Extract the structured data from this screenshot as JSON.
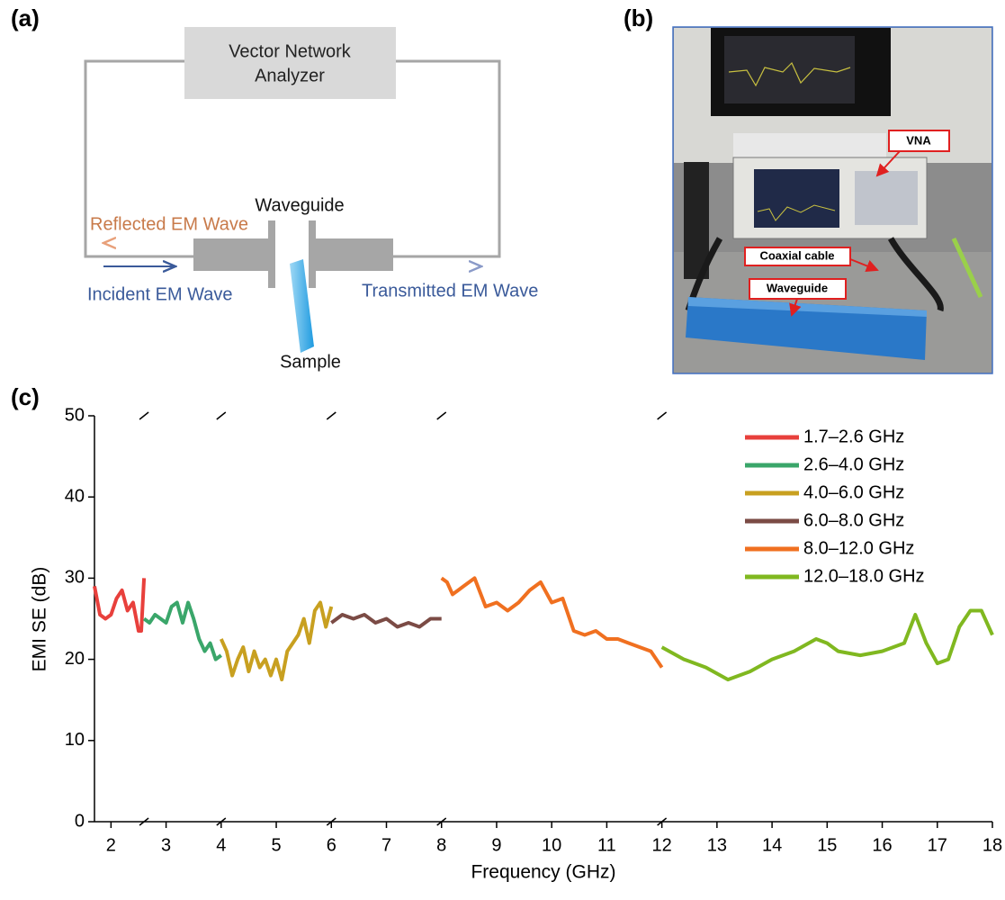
{
  "panels": {
    "a": {
      "label": "(a)",
      "analyzer": [
        "Vector Network",
        "Analyzer"
      ],
      "waveguide": "Waveguide",
      "reflected": "Reflected EM Wave",
      "incident": "Incident EM Wave",
      "transmitted": "Transmitted EM Wave",
      "sample": "Sample"
    },
    "b": {
      "label": "(b)",
      "callouts": [
        "VNA",
        "Coaxial cable",
        "Waveguide"
      ]
    },
    "c": {
      "label": "(c)"
    }
  },
  "chart_data": {
    "type": "line",
    "x_label": "Frequency (GHz)",
    "y_label": "EMI SE (dB)",
    "xlim": [
      1.7,
      18
    ],
    "xticks": [
      2,
      3,
      4,
      5,
      6,
      7,
      8,
      9,
      10,
      11,
      12,
      13,
      14,
      15,
      16,
      17,
      18
    ],
    "ylim": [
      0,
      50
    ],
    "yticks": [
      0,
      10,
      20,
      30,
      40,
      50
    ],
    "legend": "upper right",
    "grid": false,
    "series": [
      {
        "name": "1.7–2.6 GHz",
        "color": "#e8403c",
        "x": [
          1.7,
          1.8,
          1.9,
          2.0,
          2.1,
          2.2,
          2.3,
          2.4,
          2.5,
          2.55,
          2.6
        ],
        "values": [
          29,
          25.5,
          25,
          25.5,
          27.5,
          28.5,
          26,
          27,
          23.5,
          23.5,
          30
        ]
      },
      {
        "name": "2.6–4.0 GHz",
        "color": "#3aa66a",
        "x": [
          2.6,
          2.7,
          2.8,
          2.9,
          3.0,
          3.1,
          3.2,
          3.3,
          3.4,
          3.5,
          3.6,
          3.7,
          3.8,
          3.9,
          4.0
        ],
        "values": [
          25,
          24.5,
          25.5,
          25,
          24.5,
          26.5,
          27,
          24.5,
          27,
          25,
          22.5,
          21,
          22,
          20,
          20.5
        ]
      },
      {
        "name": "4.0–6.0 GHz",
        "color": "#c8a020",
        "x": [
          4.0,
          4.1,
          4.2,
          4.3,
          4.4,
          4.5,
          4.6,
          4.7,
          4.8,
          4.9,
          5.0,
          5.1,
          5.2,
          5.3,
          5.4,
          5.5,
          5.6,
          5.7,
          5.8,
          5.9,
          6.0
        ],
        "values": [
          22.5,
          21,
          18,
          20,
          21.5,
          18.5,
          21,
          19,
          20,
          18,
          20,
          17.5,
          21,
          22,
          23,
          25,
          22,
          26,
          27,
          24,
          26.5
        ]
      },
      {
        "name": "6.0–8.0 GHz",
        "color": "#7b4b45",
        "x": [
          6.0,
          6.2,
          6.4,
          6.6,
          6.8,
          7.0,
          7.2,
          7.4,
          7.6,
          7.8,
          8.0
        ],
        "values": [
          24.5,
          25.5,
          25,
          25.5,
          24.5,
          25,
          24,
          24.5,
          24,
          25,
          25
        ]
      },
      {
        "name": "8.0–12.0 GHz",
        "color": "#f07020",
        "x": [
          8.0,
          8.1,
          8.2,
          8.4,
          8.6,
          8.8,
          9.0,
          9.2,
          9.4,
          9.6,
          9.8,
          10.0,
          10.2,
          10.4,
          10.6,
          10.8,
          11.0,
          11.2,
          11.4,
          11.6,
          11.8,
          12.0
        ],
        "values": [
          30,
          29.5,
          28,
          29,
          30,
          26.5,
          27,
          26,
          27,
          28.5,
          29.5,
          27,
          27.5,
          23.5,
          23,
          23.5,
          22.5,
          22.5,
          22,
          21.5,
          21,
          19
        ]
      },
      {
        "name": "12.0–18.0 GHz",
        "color": "#80b820",
        "x": [
          12.0,
          12.4,
          12.8,
          13.2,
          13.6,
          14.0,
          14.4,
          14.8,
          15.0,
          15.2,
          15.6,
          16.0,
          16.4,
          16.6,
          16.8,
          17.0,
          17.2,
          17.4,
          17.6,
          17.8,
          18.0
        ],
        "values": [
          21.5,
          20,
          19,
          17.5,
          18.5,
          20,
          21,
          22.5,
          22,
          21,
          20.5,
          21,
          22,
          25.5,
          22,
          19.5,
          20,
          24,
          26,
          26,
          23
        ]
      }
    ]
  }
}
